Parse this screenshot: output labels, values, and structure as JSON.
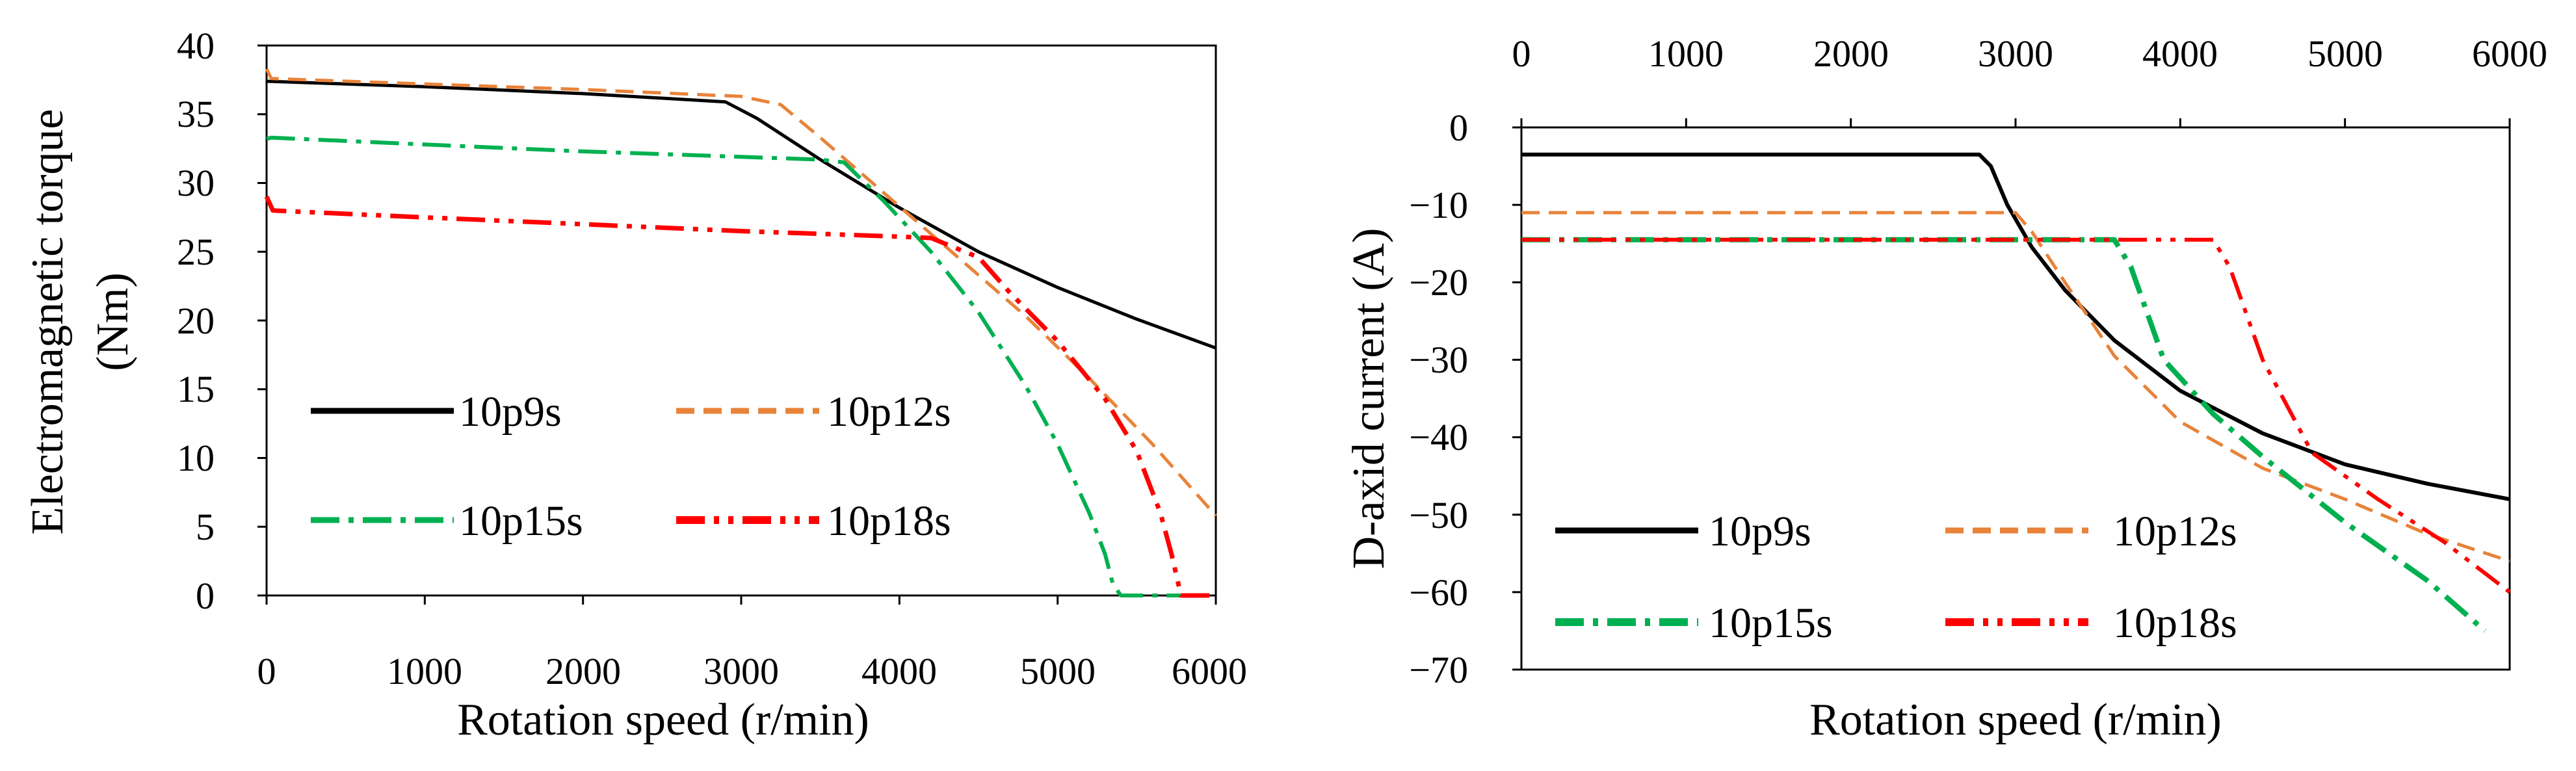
{
  "chart_data": [
    {
      "type": "line",
      "xlabel": "Rotation speed (r/min)",
      "ylabel_lines": [
        "Electromagnetic torque",
        "(Nm)"
      ],
      "xlim": [
        0,
        6000
      ],
      "ylim": [
        0,
        40
      ],
      "x_ticks": [
        "0",
        "1000",
        "2000",
        "3000",
        "4000",
        "5000",
        "6000"
      ],
      "y_ticks": [
        "0",
        "5",
        "10",
        "15",
        "20",
        "25",
        "30",
        "35",
        "40"
      ],
      "x_tick_values": [
        0,
        1000,
        2000,
        3000,
        4000,
        5000,
        6000
      ],
      "y_tick_values": [
        0,
        5,
        10,
        15,
        20,
        25,
        30,
        35,
        40
      ],
      "series": [
        {
          "name": "10p9s",
          "color": "#000000",
          "dash": "solid",
          "x": [
            0,
            1000,
            2000,
            2900,
            3100,
            3500,
            4000,
            4500,
            5000,
            5500,
            6000
          ],
          "y": [
            37.4,
            37.0,
            36.5,
            35.9,
            34.7,
            31.7,
            28.2,
            25.0,
            22.4,
            20.1,
            18.0
          ]
        },
        {
          "name": "10p12s",
          "color": "#E8833A",
          "dash": "dash",
          "x": [
            0,
            30,
            1000,
            2000,
            3000,
            3250,
            3500,
            3750,
            4000,
            4400,
            4800,
            5200,
            5600,
            6000
          ],
          "y": [
            38.3,
            37.6,
            37.2,
            36.8,
            36.3,
            35.7,
            33.3,
            30.8,
            28.3,
            24.3,
            20.3,
            15.8,
            11.0,
            5.8
          ]
        },
        {
          "name": "10p15s",
          "color": "#00B050",
          "dash": "dashdot",
          "x": [
            0,
            30,
            1000,
            2000,
            3000,
            3500,
            3650,
            3900,
            4200,
            4500,
            4800,
            5000,
            5200,
            5300,
            5350,
            5400,
            6000
          ],
          "y": [
            33.2,
            33.3,
            32.8,
            32.3,
            31.9,
            31.7,
            31.5,
            28.7,
            25.0,
            20.6,
            15.2,
            11.0,
            6.0,
            3.0,
            0.8,
            0.0,
            0.0
          ]
        },
        {
          "name": "10p18s",
          "color": "#FF0000",
          "dash": "dashdotdot",
          "x": [
            0,
            40,
            1000,
            2000,
            3000,
            4000,
            4200,
            4500,
            4700,
            5000,
            5300,
            5500,
            5650,
            5720,
            5760,
            5780,
            6000
          ],
          "y": [
            29.0,
            28.0,
            27.5,
            27.0,
            26.5,
            26.1,
            26.0,
            24.6,
            22.0,
            18.5,
            14.3,
            10.5,
            6.0,
            3.0,
            1.0,
            0.0,
            0.0
          ]
        }
      ]
    },
    {
      "type": "line",
      "xlabel": "Rotation speed (r/min)",
      "ylabel": "D-axid current (A)",
      "xlim": [
        0,
        6000
      ],
      "ylim": [
        -70,
        0
      ],
      "x_ticks": [
        "0",
        "1000",
        "2000",
        "3000",
        "4000",
        "5000",
        "6000"
      ],
      "y_ticks": [
        "0",
        "−10",
        "−20",
        "−30",
        "−40",
        "−50",
        "−60",
        "−70"
      ],
      "x_tick_values": [
        0,
        1000,
        2000,
        3000,
        4000,
        5000,
        6000
      ],
      "y_tick_values": [
        0,
        -10,
        -20,
        -30,
        -40,
        -50,
        -60,
        -70
      ],
      "series": [
        {
          "name": "10p9s",
          "color": "#000000",
          "dash": "solid",
          "x": [
            0,
            2780,
            2850,
            2950,
            3100,
            3300,
            3600,
            4000,
            4500,
            5000,
            5500,
            6000
          ],
          "y": [
            -3.5,
            -3.5,
            -5.0,
            -10.0,
            -15.5,
            -21.0,
            -27.5,
            -34.0,
            -39.5,
            -43.5,
            -46.0,
            -48.0
          ]
        },
        {
          "name": "10p12s",
          "color": "#E8833A",
          "dash": "dash",
          "x": [
            0,
            3000,
            3100,
            3300,
            3600,
            4000,
            4500,
            5000,
            5500,
            6000
          ],
          "y": [
            -11.0,
            -11.0,
            -13.5,
            -20.0,
            -29.5,
            -38.0,
            -44.0,
            -48.0,
            -52.5,
            -56.0
          ]
        },
        {
          "name": "10p15s",
          "color": "#00B050",
          "dash": "dashdot",
          "x": [
            0,
            3600,
            3700,
            3900,
            4200,
            4500,
            5000,
            5500,
            5850
          ],
          "y": [
            -14.5,
            -14.5,
            -18.0,
            -30.0,
            -37.0,
            -42.5,
            -51.0,
            -58.5,
            -65.0
          ]
        },
        {
          "name": "10p18s",
          "color": "#FF0000",
          "dash": "dashdotdot",
          "x": [
            0,
            4200,
            4300,
            4500,
            4800,
            5200,
            5600,
            6000
          ],
          "y": [
            -14.5,
            -14.5,
            -18.0,
            -30.0,
            -42.0,
            -48.0,
            -53.5,
            -60.0
          ]
        }
      ]
    }
  ]
}
